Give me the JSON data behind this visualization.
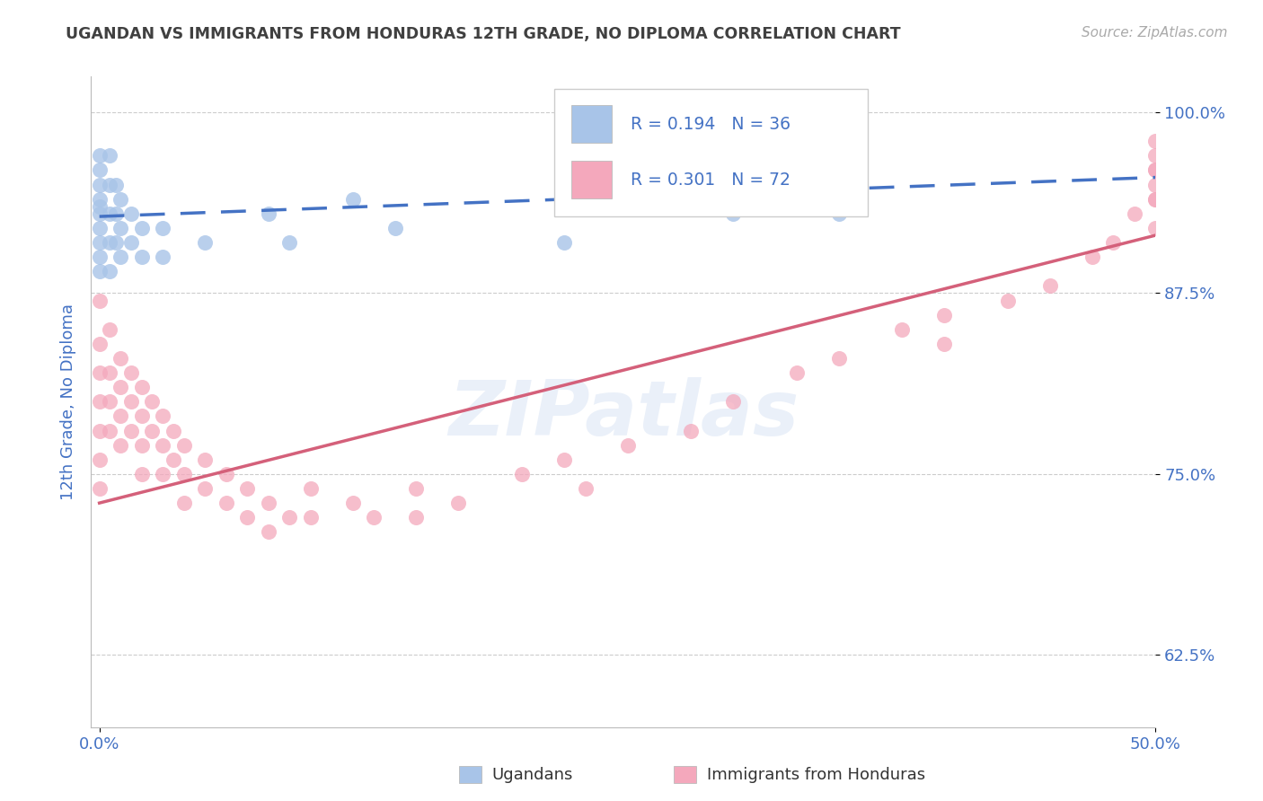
{
  "title": "UGANDAN VS IMMIGRANTS FROM HONDURAS 12TH GRADE, NO DIPLOMA CORRELATION CHART",
  "source_text": "Source: ZipAtlas.com",
  "ylabel": "12th Grade, No Diploma",
  "xlim": [
    0.0,
    0.5
  ],
  "ylim": [
    0.575,
    1.025
  ],
  "ytick_values": [
    0.625,
    0.75,
    0.875,
    1.0
  ],
  "ytick_labels": [
    "62.5%",
    "75.0%",
    "87.5%",
    "100.0%"
  ],
  "xtick_values": [
    0.0,
    0.5
  ],
  "xtick_labels": [
    "0.0%",
    "50.0%"
  ],
  "legend_blue_label": "Ugandans",
  "legend_pink_label": "Immigrants from Honduras",
  "blue_r": "R = 0.194",
  "blue_n": "N = 36",
  "pink_r": "R = 0.301",
  "pink_n": "N = 72",
  "blue_color": "#a8c4e8",
  "pink_color": "#f4a8bc",
  "blue_line_color": "#4472c4",
  "pink_line_color": "#d4607a",
  "axis_label_color": "#4472c4",
  "title_color": "#404040",
  "watermark": "ZIPatlas",
  "blue_trend_x0": 0.0,
  "blue_trend_y0": 0.928,
  "blue_trend_x1": 0.5,
  "blue_trend_y1": 0.955,
  "pink_trend_x0": 0.0,
  "pink_trend_y0": 0.73,
  "pink_trend_x1": 0.5,
  "pink_trend_y1": 0.915,
  "blue_x": [
    0.0,
    0.0,
    0.0,
    0.0,
    0.0,
    0.0,
    0.0,
    0.0,
    0.0,
    0.0,
    0.005,
    0.005,
    0.005,
    0.005,
    0.005,
    0.008,
    0.008,
    0.008,
    0.01,
    0.01,
    0.01,
    0.015,
    0.015,
    0.02,
    0.02,
    0.03,
    0.03,
    0.05,
    0.08,
    0.09,
    0.12,
    0.14,
    0.22,
    0.27,
    0.3,
    0.35
  ],
  "blue_y": [
    0.97,
    0.96,
    0.95,
    0.94,
    0.93,
    0.92,
    0.91,
    0.9,
    0.89,
    0.935,
    0.97,
    0.95,
    0.93,
    0.91,
    0.89,
    0.95,
    0.93,
    0.91,
    0.94,
    0.92,
    0.9,
    0.93,
    0.91,
    0.92,
    0.9,
    0.92,
    0.9,
    0.91,
    0.93,
    0.91,
    0.94,
    0.92,
    0.91,
    0.935,
    0.93,
    0.93
  ],
  "pink_x": [
    0.0,
    0.0,
    0.0,
    0.0,
    0.0,
    0.0,
    0.0,
    0.005,
    0.005,
    0.005,
    0.005,
    0.01,
    0.01,
    0.01,
    0.01,
    0.015,
    0.015,
    0.015,
    0.02,
    0.02,
    0.02,
    0.02,
    0.025,
    0.025,
    0.03,
    0.03,
    0.03,
    0.035,
    0.035,
    0.04,
    0.04,
    0.04,
    0.05,
    0.05,
    0.06,
    0.06,
    0.07,
    0.07,
    0.08,
    0.08,
    0.09,
    0.1,
    0.1,
    0.12,
    0.13,
    0.15,
    0.15,
    0.17,
    0.2,
    0.22,
    0.23,
    0.25,
    0.28,
    0.3,
    0.33,
    0.35,
    0.38,
    0.4,
    0.4,
    0.43,
    0.45,
    0.47,
    0.48,
    0.49,
    0.5,
    0.5,
    0.5,
    0.5,
    0.5,
    0.5,
    0.5,
    0.5
  ],
  "pink_y": [
    0.87,
    0.84,
    0.82,
    0.8,
    0.78,
    0.76,
    0.74,
    0.85,
    0.82,
    0.8,
    0.78,
    0.83,
    0.81,
    0.79,
    0.77,
    0.82,
    0.8,
    0.78,
    0.81,
    0.79,
    0.77,
    0.75,
    0.8,
    0.78,
    0.79,
    0.77,
    0.75,
    0.78,
    0.76,
    0.77,
    0.75,
    0.73,
    0.76,
    0.74,
    0.75,
    0.73,
    0.74,
    0.72,
    0.73,
    0.71,
    0.72,
    0.74,
    0.72,
    0.73,
    0.72,
    0.74,
    0.72,
    0.73,
    0.75,
    0.76,
    0.74,
    0.77,
    0.78,
    0.8,
    0.82,
    0.83,
    0.85,
    0.86,
    0.84,
    0.87,
    0.88,
    0.9,
    0.91,
    0.93,
    0.94,
    0.92,
    0.96,
    0.94,
    0.97,
    0.95,
    0.98,
    0.96
  ]
}
